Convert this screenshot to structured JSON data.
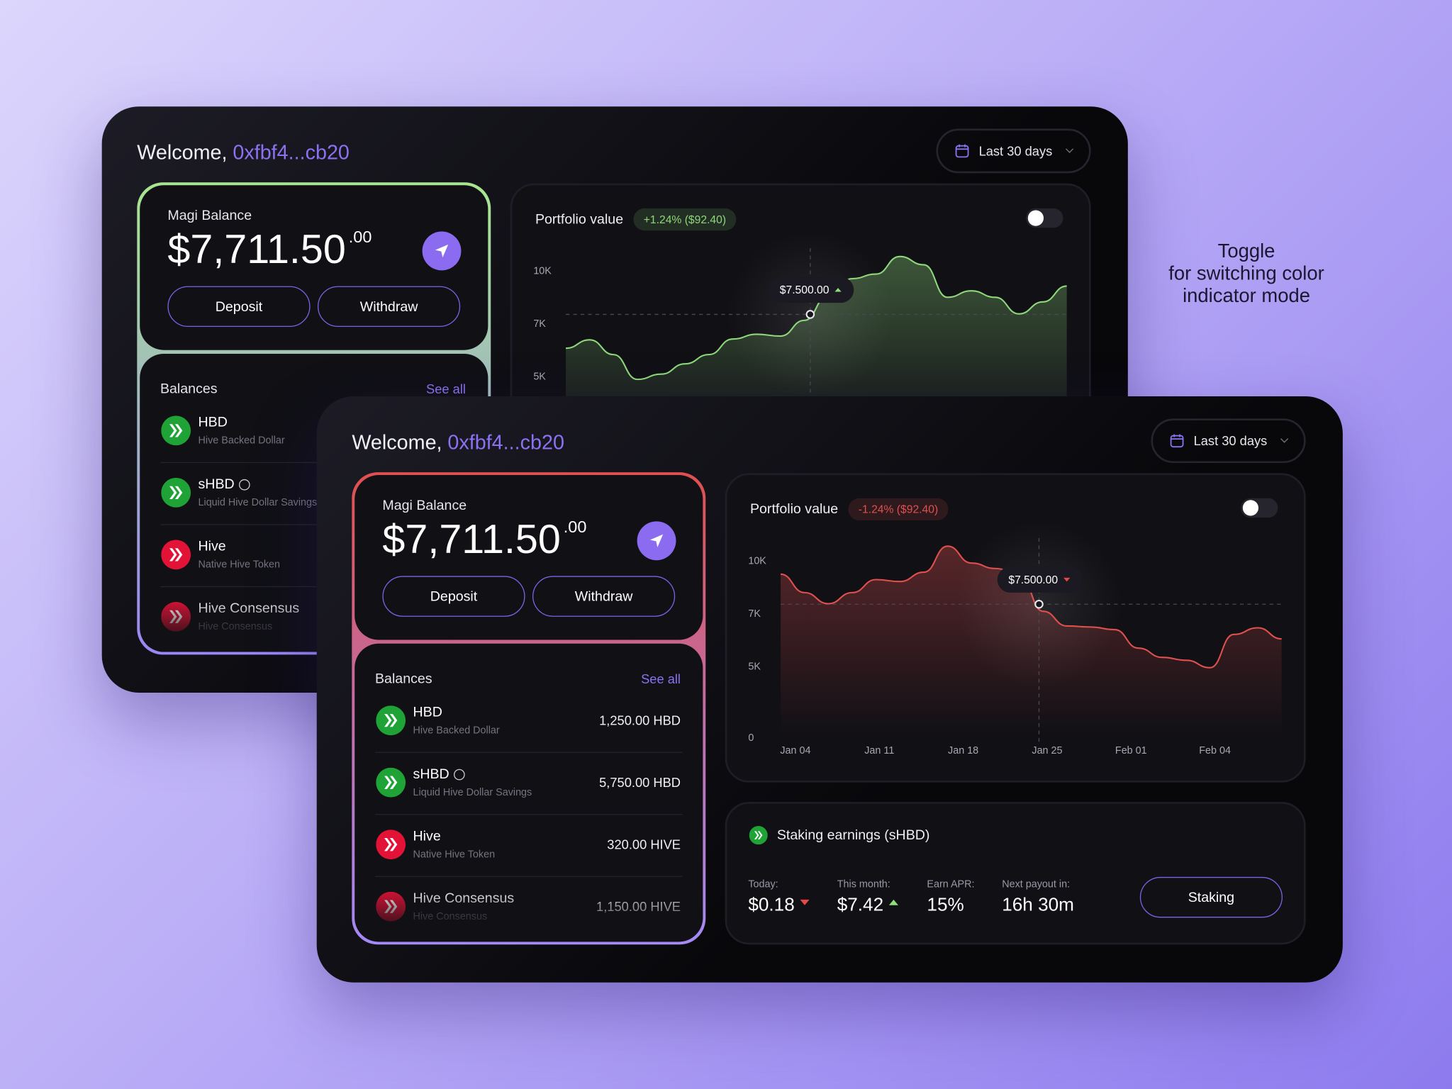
{
  "annotation_lines": [
    "Toggle",
    "for switching color",
    "indicator mode"
  ],
  "dashboards": [
    {
      "welcome": "Welcome,",
      "address": "0xfbf4...cb20",
      "date_range": "Last 30 days",
      "border_colors": [
        "#a8e68f",
        "#9a86f6"
      ],
      "balance": {
        "label": "Magi Balance",
        "amount": "$7,711.50",
        "cents": ".00",
        "deposit": "Deposit",
        "withdraw": "Withdraw"
      },
      "balances": {
        "title": "Balances",
        "see_all": "See all",
        "items": [
          {
            "name": "HBD",
            "sub": "Hive Backed Dollar",
            "color": "#1fa336"
          },
          {
            "name": "sHBD",
            "sub": "Liquid Hive Dollar Savings",
            "color": "#1fa336",
            "info": true
          },
          {
            "name": "Hive",
            "sub": "Native Hive Token",
            "color": "#e31337"
          },
          {
            "name": "Hive Consensus",
            "sub": "Hive Consensus",
            "color": "#e31337"
          }
        ]
      },
      "portfolio": {
        "title": "Portfolio value",
        "change": "+1.24% ($92.40)",
        "color": "#8fd77b",
        "yticks": [
          {
            "value": 10000,
            "label": "10K"
          },
          {
            "value": 7000,
            "label": "7K"
          },
          {
            "value": 5000,
            "label": "5K"
          }
        ],
        "values": [
          6050,
          6370,
          5810,
          4870,
          5070,
          5460,
          5810,
          6400,
          6580,
          6510,
          7160,
          8580,
          9530,
          9790,
          10790,
          10320,
          8470,
          8840,
          8470,
          7530,
          8210,
          9110
        ],
        "hover": {
          "label": "$7.500.00",
          "value": 7500,
          "trend": "up"
        }
      }
    },
    {
      "welcome": "Welcome,",
      "address": "0xfbf4...cb20",
      "date_range": "Last 30 days",
      "border_colors": [
        "#e0504f",
        "#a48af5"
      ],
      "balance": {
        "label": "Magi Balance",
        "amount": "$7,711.50",
        "cents": ".00",
        "deposit": "Deposit",
        "withdraw": "Withdraw"
      },
      "balances": {
        "title": "Balances",
        "see_all": "See all",
        "items": [
          {
            "name": "HBD",
            "sub": "Hive Backed Dollar",
            "amount": "1,250.00 HBD",
            "color": "#1fa336"
          },
          {
            "name": "sHBD",
            "sub": "Liquid Hive Dollar Savings",
            "amount": "5,750.00 HBD",
            "color": "#1fa336",
            "info": true
          },
          {
            "name": "Hive",
            "sub": "Native Hive Token",
            "amount": "320.00 HIVE",
            "color": "#e31337"
          },
          {
            "name": "Hive Consensus",
            "sub": "Hive Consensus",
            "amount": "1,150.00 HIVE",
            "color": "#e31337"
          }
        ]
      },
      "portfolio": {
        "title": "Portfolio value",
        "change": "-1.24% ($92.40)",
        "color": "#e0504f",
        "yticks": [
          {
            "value": 10000,
            "label": "10K"
          },
          {
            "value": 7000,
            "label": "7K"
          },
          {
            "value": 5000,
            "label": "5K"
          },
          0
        ],
        "x_labels": [
          "Jan 04",
          "Jan 11",
          "Jan 18",
          "Jan 25",
          "Feb 01",
          "Feb 04"
        ],
        "values": [
          9210,
          8160,
          7530,
          8160,
          8900,
          8790,
          9320,
          10800,
          9840,
          9530,
          9210,
          7100,
          6510,
          6470,
          6370,
          5670,
          5320,
          5210,
          4870,
          6190,
          6440,
          6020
        ],
        "hover": {
          "label": "$7.500.00",
          "value": 7500,
          "trend": "down"
        }
      },
      "staking": {
        "title": "Staking earnings (sHBD)",
        "button": "Staking",
        "stats": [
          {
            "label": "Today:",
            "value": "$0.18",
            "trend": "down"
          },
          {
            "label": "This month:",
            "value": "$7.42",
            "trend": "up"
          },
          {
            "label": "Earn APR:",
            "value": "15%"
          },
          {
            "label": "Next payout in:",
            "value": "16h 30m"
          }
        ]
      }
    }
  ]
}
